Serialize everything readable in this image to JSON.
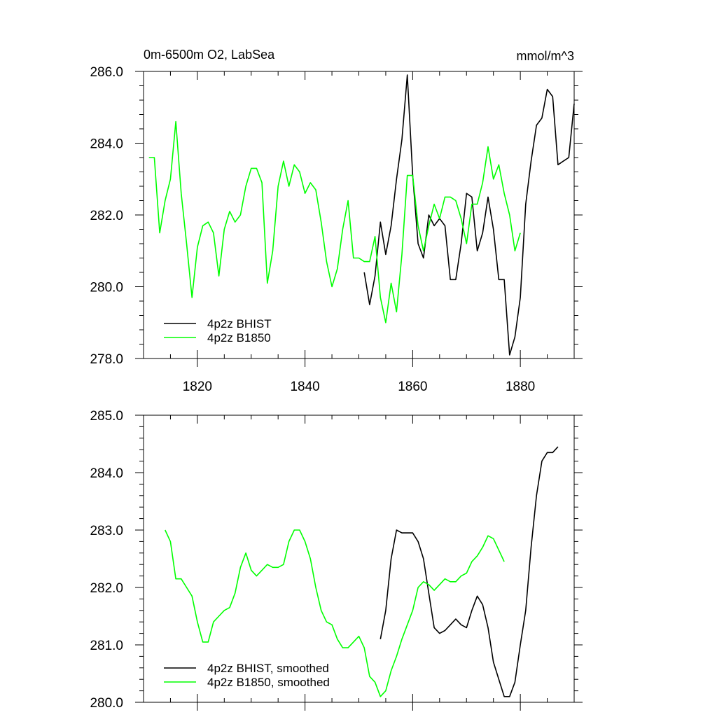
{
  "chart_data": [
    {
      "type": "line",
      "title": "0m-6500m O2, LabSea",
      "units": "mmol/m^3",
      "xlim": [
        1810,
        1890
      ],
      "ylim": [
        278,
        286
      ],
      "xticks": [
        1820,
        1840,
        1860,
        1880
      ],
      "xtick_labels": [
        "1820",
        "1840",
        "1860",
        "1880"
      ],
      "yticks": [
        278,
        280,
        282,
        284,
        286
      ],
      "ytick_labels": [
        "278.0",
        "280.0",
        "282.0",
        "284.0",
        "286.0"
      ],
      "legend": "bottom-left",
      "grid": false,
      "series": [
        {
          "name": "4p2z BHIST",
          "color": "#000000",
          "x": [
            1851,
            1852,
            1853,
            1854,
            1855,
            1856,
            1857,
            1858,
            1859,
            1860,
            1861,
            1862,
            1863,
            1864,
            1865,
            1866,
            1867,
            1868,
            1869,
            1870,
            1871,
            1872,
            1873,
            1874,
            1875,
            1876,
            1877,
            1878,
            1879,
            1880,
            1881,
            1882,
            1883,
            1884,
            1885,
            1886,
            1887,
            1888,
            1889,
            1890
          ],
          "y": [
            280.4,
            279.5,
            280.3,
            281.8,
            280.9,
            281.7,
            283.0,
            284.1,
            285.9,
            283.1,
            281.2,
            280.8,
            282.0,
            281.7,
            281.9,
            281.7,
            280.2,
            280.2,
            281.2,
            282.6,
            282.5,
            281.0,
            281.5,
            282.5,
            281.6,
            280.2,
            280.2,
            278.1,
            278.6,
            279.7,
            282.3,
            283.5,
            284.5,
            284.7,
            285.5,
            285.3,
            283.4,
            283.5,
            283.6,
            285.1
          ]
        },
        {
          "name": "4p2z B1850",
          "color": "#00ff00",
          "x": [
            1811,
            1812,
            1813,
            1814,
            1815,
            1816,
            1817,
            1818,
            1819,
            1820,
            1821,
            1822,
            1823,
            1824,
            1825,
            1826,
            1827,
            1828,
            1829,
            1830,
            1831,
            1832,
            1833,
            1834,
            1835,
            1836,
            1837,
            1838,
            1839,
            1840,
            1841,
            1842,
            1843,
            1844,
            1845,
            1846,
            1847,
            1848,
            1849,
            1850,
            1851,
            1852,
            1853,
            1854,
            1855,
            1856,
            1857,
            1858,
            1859,
            1860,
            1861,
            1862,
            1863,
            1864,
            1865,
            1866,
            1867,
            1868,
            1869,
            1870,
            1871,
            1872,
            1873,
            1874,
            1875,
            1876,
            1877,
            1878,
            1879,
            1880
          ],
          "y": [
            283.6,
            283.6,
            281.5,
            282.4,
            283.0,
            284.6,
            282.6,
            281.2,
            279.7,
            281.1,
            281.7,
            281.8,
            281.5,
            280.3,
            281.6,
            282.1,
            281.8,
            282.0,
            282.8,
            283.3,
            283.3,
            282.9,
            280.1,
            281.0,
            282.8,
            283.5,
            282.8,
            283.4,
            283.2,
            282.6,
            282.9,
            282.7,
            281.8,
            280.7,
            280.0,
            280.5,
            281.6,
            282.4,
            280.8,
            280.8,
            280.7,
            280.7,
            281.4,
            279.7,
            279.0,
            280.1,
            279.3,
            280.9,
            283.1,
            283.1,
            281.7,
            281.0,
            281.7,
            282.3,
            281.9,
            282.5,
            282.5,
            282.4,
            281.9,
            281.2,
            282.3,
            282.3,
            282.9,
            283.9,
            283.0,
            283.4,
            282.6,
            282.0,
            281.0,
            281.5
          ]
        }
      ]
    },
    {
      "type": "line",
      "xlim": [
        1810,
        1890
      ],
      "ylim": [
        280,
        285
      ],
      "xticks": [
        1820,
        1840,
        1860,
        1880
      ],
      "yticks": [
        280,
        281,
        282,
        283,
        284,
        285
      ],
      "ytick_labels": [
        "280.0",
        "281.0",
        "282.0",
        "283.0",
        "284.0",
        "285.0"
      ],
      "legend": "bottom-left",
      "grid": false,
      "series": [
        {
          "name": "4p2z BHIST, smoothed",
          "color": "#000000",
          "x": [
            1854,
            1855,
            1856,
            1857,
            1858,
            1859,
            1860,
            1861,
            1862,
            1863,
            1864,
            1865,
            1866,
            1867,
            1868,
            1869,
            1870,
            1871,
            1872,
            1873,
            1874,
            1875,
            1876,
            1877,
            1878,
            1879,
            1880,
            1881,
            1882,
            1883,
            1884,
            1885,
            1886,
            1887
          ],
          "y": [
            281.1,
            281.6,
            282.5,
            283.0,
            282.95,
            282.95,
            282.95,
            282.8,
            282.5,
            281.9,
            281.3,
            281.2,
            281.25,
            281.35,
            281.45,
            281.35,
            281.3,
            281.6,
            281.85,
            281.7,
            281.3,
            280.7,
            280.4,
            280.1,
            280.1,
            280.35,
            281.0,
            281.6,
            282.7,
            283.6,
            284.2,
            284.35,
            284.35,
            284.45
          ]
        },
        {
          "name": "4p2z B1850, smoothed",
          "color": "#00ff00",
          "x": [
            1814,
            1815,
            1816,
            1817,
            1818,
            1819,
            1820,
            1821,
            1822,
            1823,
            1824,
            1825,
            1826,
            1827,
            1828,
            1829,
            1830,
            1831,
            1832,
            1833,
            1834,
            1835,
            1836,
            1837,
            1838,
            1839,
            1840,
            1841,
            1842,
            1843,
            1844,
            1845,
            1846,
            1847,
            1848,
            1849,
            1850,
            1851,
            1852,
            1853,
            1854,
            1855,
            1856,
            1857,
            1858,
            1859,
            1860,
            1861,
            1862,
            1863,
            1864,
            1865,
            1866,
            1867,
            1868,
            1869,
            1870,
            1871,
            1872,
            1873,
            1874,
            1875,
            1876,
            1877
          ],
          "y": [
            283.0,
            282.8,
            282.15,
            282.15,
            282.0,
            281.85,
            281.4,
            281.05,
            281.05,
            281.4,
            281.5,
            281.6,
            281.65,
            281.9,
            282.35,
            282.6,
            282.3,
            282.2,
            282.3,
            282.4,
            282.35,
            282.35,
            282.4,
            282.8,
            283.0,
            283.0,
            282.8,
            282.5,
            282.0,
            281.6,
            281.4,
            281.35,
            281.1,
            280.95,
            280.95,
            281.05,
            281.15,
            280.95,
            280.45,
            280.35,
            280.1,
            280.2,
            280.55,
            280.8,
            281.1,
            281.35,
            281.6,
            282.0,
            282.1,
            282.05,
            281.95,
            282.05,
            282.15,
            282.1,
            282.1,
            282.2,
            282.25,
            282.45,
            282.55,
            282.7,
            282.9,
            282.85,
            282.65,
            282.45
          ]
        }
      ]
    }
  ]
}
